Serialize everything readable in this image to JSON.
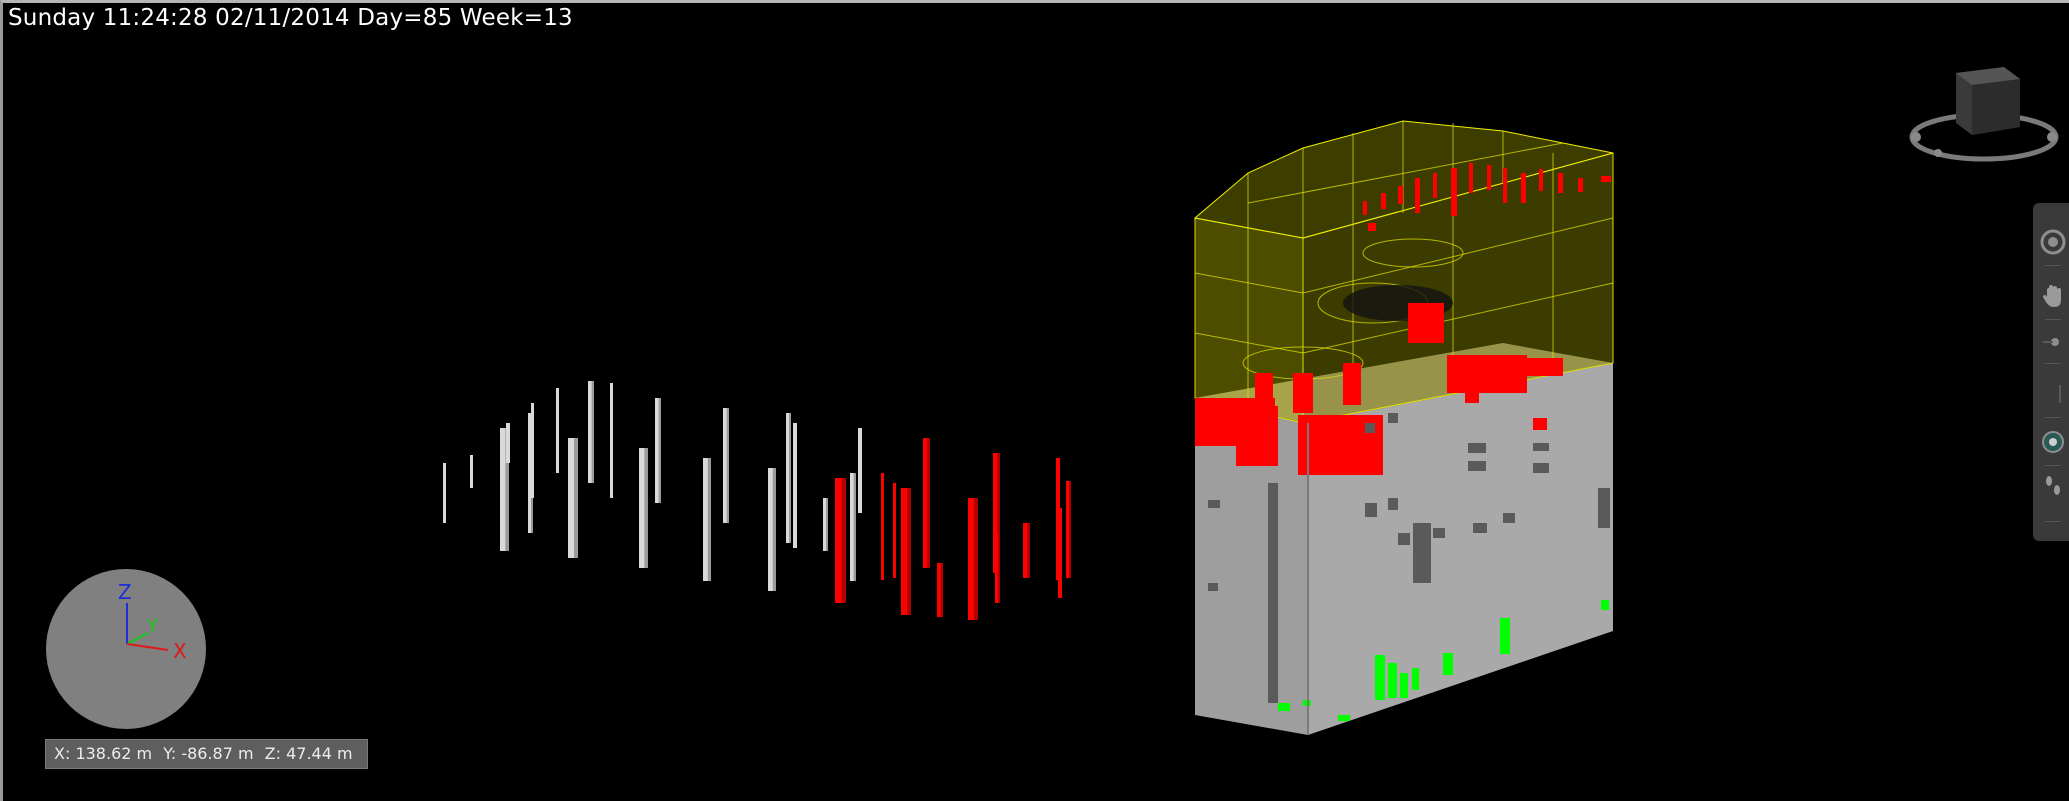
{
  "viewport": {
    "sim_time": "Sunday 11:24:28 02/11/2014 Day=85 Week=13",
    "coordinates": {
      "x": "X: 138.62 m",
      "y": "Y: -86.87 m",
      "z": "Z: 47.44 m"
    },
    "axis_gizmo": {
      "z_label": "Z",
      "y_label": "Y",
      "x_label": "X"
    }
  },
  "colors": {
    "background": "#000000",
    "status_red": "#ff0000",
    "model_grey": "#a6a6a6",
    "highlight_yellow": "#d8d800",
    "highlight_green": "#00ff00",
    "pile_white": "#d9d9d9"
  },
  "navigation_bar": {
    "tools": [
      {
        "icon": "steering-wheel-icon"
      },
      {
        "icon": "pan-hand-icon"
      },
      {
        "icon": "zoom-icon"
      },
      {
        "icon": "orbit-icon"
      },
      {
        "icon": "look-around-icon"
      },
      {
        "icon": "walk-footprints-icon"
      }
    ]
  }
}
